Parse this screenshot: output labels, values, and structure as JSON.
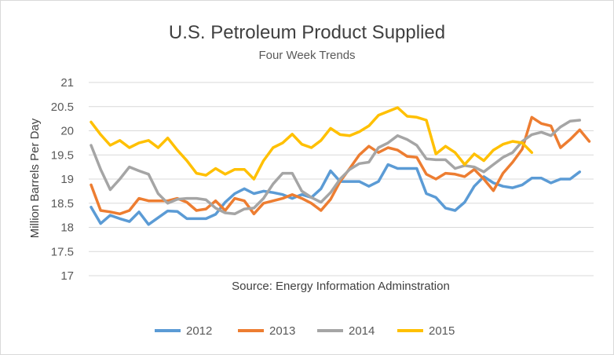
{
  "chart_data": {
    "type": "line",
    "title": "U.S. Petroleum Product Supplied",
    "subtitle": "Four Week Trends",
    "xlabel": "",
    "ylabel": "Million Barrels Per Day",
    "annotation": "Source: Energy Information Adminstration",
    "ylim": [
      17,
      21
    ],
    "yticks": [
      17,
      17.5,
      18,
      18.5,
      19,
      19.5,
      20,
      20.5,
      21
    ],
    "grid": true,
    "legend_position": "bottom",
    "series": [
      {
        "name": "2012",
        "color": "#5b9bd5",
        "values": [
          18.42,
          18.08,
          18.25,
          18.18,
          18.12,
          18.32,
          18.06,
          18.2,
          18.34,
          18.33,
          18.18,
          18.18,
          18.18,
          18.27,
          18.52,
          18.7,
          18.8,
          18.7,
          18.75,
          18.72,
          18.68,
          18.6,
          18.68,
          18.62,
          18.8,
          19.17,
          18.95,
          18.95,
          18.95,
          18.85,
          18.95,
          19.3,
          19.22,
          19.22,
          19.22,
          18.7,
          18.62,
          18.4,
          18.35,
          18.52,
          18.85,
          19.05,
          18.92,
          18.85,
          18.82,
          18.88,
          19.02,
          19.02,
          18.92,
          19.0,
          19.0,
          19.15
        ]
      },
      {
        "name": "2013",
        "color": "#ed7d31",
        "values": [
          18.88,
          18.35,
          18.32,
          18.28,
          18.35,
          18.6,
          18.55,
          18.55,
          18.55,
          18.6,
          18.52,
          18.35,
          18.38,
          18.55,
          18.35,
          18.6,
          18.55,
          18.28,
          18.5,
          18.55,
          18.6,
          18.68,
          18.6,
          18.5,
          18.35,
          18.58,
          18.95,
          19.22,
          19.5,
          19.68,
          19.55,
          19.65,
          19.6,
          19.47,
          19.45,
          19.1,
          19.0,
          19.12,
          19.1,
          19.05,
          19.2,
          19.0,
          18.76,
          19.12,
          19.35,
          19.62,
          20.28,
          20.15,
          20.1,
          19.65,
          19.82,
          20.02,
          19.78
        ]
      },
      {
        "name": "2014",
        "color": "#a5a5a5",
        "values": [
          19.7,
          19.2,
          18.78,
          19.0,
          19.25,
          19.17,
          19.1,
          18.7,
          18.5,
          18.58,
          18.6,
          18.6,
          18.57,
          18.4,
          18.3,
          18.28,
          18.38,
          18.4,
          18.6,
          18.9,
          19.12,
          19.12,
          18.75,
          18.62,
          18.52,
          18.72,
          19.0,
          19.2,
          19.32,
          19.35,
          19.65,
          19.75,
          19.9,
          19.82,
          19.7,
          19.42,
          19.4,
          19.4,
          19.22,
          19.28,
          19.25,
          19.15,
          19.3,
          19.45,
          19.55,
          19.78,
          19.92,
          19.97,
          19.9,
          20.08,
          20.2,
          20.22
        ]
      },
      {
        "name": "2015",
        "color": "#ffc000",
        "values": [
          20.18,
          19.92,
          19.7,
          19.8,
          19.65,
          19.75,
          19.8,
          19.65,
          19.85,
          19.6,
          19.38,
          19.12,
          19.08,
          19.22,
          19.1,
          19.2,
          19.2,
          19.0,
          19.38,
          19.65,
          19.75,
          19.93,
          19.72,
          19.65,
          19.8,
          20.05,
          19.92,
          19.9,
          19.98,
          20.1,
          20.32,
          20.4,
          20.48,
          20.3,
          20.28,
          20.22,
          19.52,
          19.68,
          19.55,
          19.3,
          19.52,
          19.38,
          19.6,
          19.72,
          19.78,
          19.75,
          19.55
        ]
      }
    ]
  }
}
